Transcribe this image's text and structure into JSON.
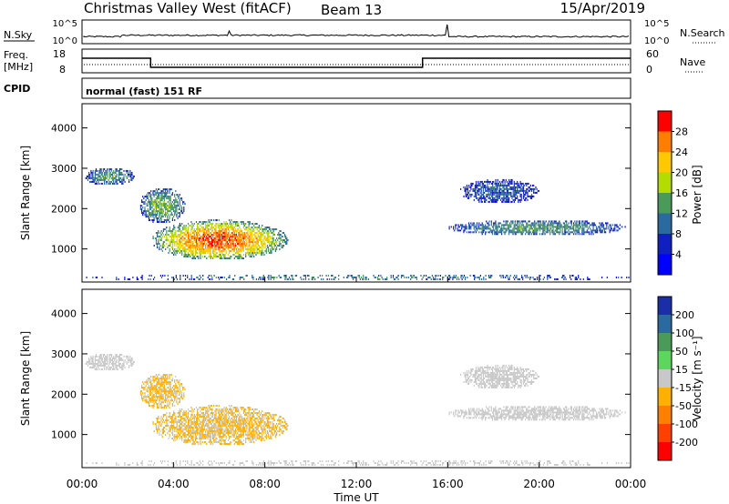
{
  "header": {
    "station": "Christmas Valley West (fitACF)",
    "beam": "Beam 13",
    "date": "15/Apr/2019"
  },
  "strip_labels": {
    "nsky": "N.Sky",
    "freq_line1": "Freq.",
    "freq_line2": "[MHz]",
    "cpid": "CPID",
    "nsearch": "N.Search",
    "nave": "Nave",
    "nsky_hi": "10^5",
    "nsky_lo": "10^0",
    "freq_hi": "18",
    "freq_lo": "8",
    "nave_hi": "60",
    "nave_lo": "0",
    "cpid_text": "normal (fast) 151 RF"
  },
  "axes": {
    "xlabel": "Time UT",
    "ylabel": "Slant Range [km]",
    "xticks": [
      "00:00",
      "04:00",
      "08:00",
      "12:00",
      "16:00",
      "20:00",
      "00:00"
    ],
    "yticks": [
      "1000",
      "2000",
      "3000",
      "4000"
    ]
  },
  "colorbars": {
    "power": {
      "label": "Power [dB]",
      "ticks": [
        "28",
        "24",
        "20",
        "16",
        "12",
        "8",
        "4"
      ],
      "colors": [
        "#ff0000",
        "#ff7d00",
        "#ffc800",
        "#b4dc00",
        "#4a9a5a",
        "#2a6aa0",
        "#1020c0",
        "#0000ff"
      ]
    },
    "velocity": {
      "label": "Velocity [m s⁻¹]",
      "ticks": [
        "200",
        "100",
        "50",
        "15",
        "-15",
        "-50",
        "-100",
        "-200"
      ],
      "colors": [
        "#1a2ea8",
        "#2a6aa0",
        "#4a9a5a",
        "#5cd65c",
        "#c8c8c8",
        "#ffb000",
        "#ff8000",
        "#ff4000",
        "#ff0000"
      ]
    }
  },
  "chart_data": {
    "type": "heatmap",
    "x_range_hours": [
      0,
      24
    ],
    "y_range_km": [
      180,
      4600
    ],
    "frequency_segments": [
      {
        "from_h": 0,
        "to_h": 3.0,
        "level": "high"
      },
      {
        "from_h": 3.0,
        "to_h": 14.9,
        "level": "low"
      },
      {
        "from_h": 14.9,
        "to_h": 24,
        "level": "high"
      }
    ],
    "scatter_regions": [
      {
        "name": "morning-e-region",
        "t": [
          3.0,
          9.0
        ],
        "r": [
          700,
          1700
        ],
        "power_core": 26,
        "velocity": -20
      },
      {
        "name": "early-far-echoes",
        "t": [
          0.1,
          2.3
        ],
        "r": [
          2550,
          3000
        ],
        "power_core": 12,
        "velocity": 0
      },
      {
        "name": "dawn-band",
        "t": [
          2.5,
          4.5
        ],
        "r": [
          1600,
          2500
        ],
        "power_core": 14,
        "velocity": -20
      },
      {
        "name": "evening-echoes",
        "t": [
          16.0,
          23.8
        ],
        "r": [
          1300,
          1700
        ],
        "power_core": 12,
        "velocity": 0
      },
      {
        "name": "evening-far-echoes",
        "t": [
          16.5,
          20.0
        ],
        "r": [
          2100,
          2700
        ],
        "power_core": 8,
        "velocity": 0
      },
      {
        "name": "ground-scatter-near",
        "t": [
          0,
          24
        ],
        "r": [
          180,
          350
        ],
        "power_core": 10,
        "velocity": 0
      }
    ]
  }
}
